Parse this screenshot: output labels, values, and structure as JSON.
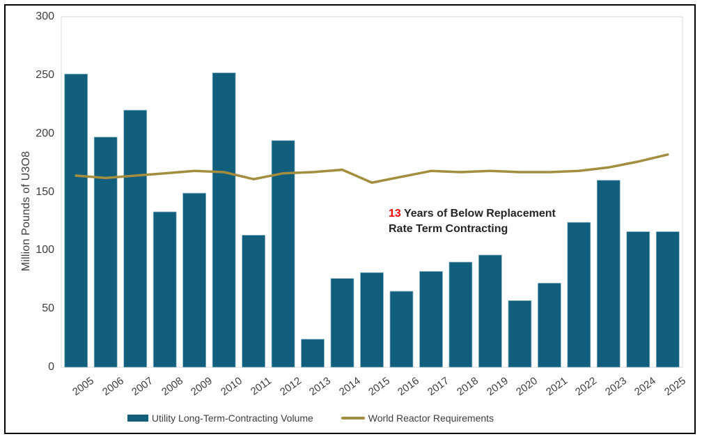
{
  "frame": {
    "border_color": "#010101",
    "background": "#ffffff"
  },
  "y_axis": {
    "title": "Million Pounds of U3O8",
    "ticks": [
      0,
      50,
      100,
      150,
      200,
      250,
      300
    ]
  },
  "annotation": {
    "highlight": "13",
    "line1": " Years of Below Replacement",
    "line2": "Rate Term Contracting",
    "highlight_color": "#ff0000",
    "text_color": "#262626"
  },
  "legend": [
    {
      "label": "Utility Long-Term-Contracting Volume",
      "swatch": "bar",
      "color": "#115F7D"
    },
    {
      "label": "World Reactor Requirements",
      "swatch": "line",
      "color": "#A28E3E"
    }
  ],
  "colors": {
    "bar_fill": "#115F7D",
    "bar_stroke": "#8FB7C5",
    "line_stroke": "#A28E3E",
    "plot_border": "#D9D9D9",
    "axis_text": "#3d3d3d"
  },
  "chart_data": {
    "type": "bar",
    "subtype": "bar-with-line-overlay",
    "title": "",
    "xlabel": "",
    "ylabel": "Million Pounds of U3O8",
    "ylim": [
      0,
      300
    ],
    "ytick_step": 50,
    "grid": false,
    "legend_position": "bottom",
    "categories": [
      "2005",
      "2006",
      "2007",
      "2008",
      "2009",
      "2010",
      "2011",
      "2012",
      "2013",
      "2014",
      "2015",
      "2016",
      "2017",
      "2018",
      "2019",
      "2020",
      "2021",
      "2022",
      "2023",
      "2024",
      "2025"
    ],
    "series": [
      {
        "name": "Utility Long-Term-Contracting Volume",
        "type": "bar",
        "color": "#115F7D",
        "values": [
          251,
          197,
          220,
          133,
          149,
          252,
          113,
          194,
          24,
          76,
          81,
          65,
          82,
          90,
          96,
          57,
          72,
          124,
          160,
          116,
          116
        ]
      },
      {
        "name": "World Reactor Requirements",
        "type": "line",
        "color": "#A28E3E",
        "values": [
          164,
          162,
          164,
          166,
          168,
          167,
          161,
          166,
          167,
          169,
          158,
          163,
          168,
          167,
          168,
          167,
          167,
          168,
          171,
          176,
          182
        ]
      }
    ]
  }
}
